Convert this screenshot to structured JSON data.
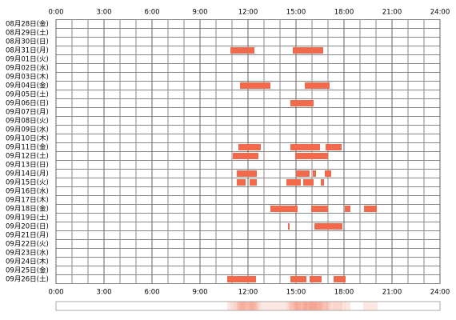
{
  "chart_data": {
    "type": "timeline",
    "categories": [
      "08月28日(金)",
      "08月29日(土)",
      "08月30日(日)",
      "08月31日(月)",
      "09月01日(火)",
      "09月02日(水)",
      "09月03日(木)",
      "09月04日(金)",
      "09月05日(土)",
      "09月06日(日)",
      "09月07日(月)",
      "09月08日(火)",
      "09月09日(水)",
      "09月10日(木)",
      "09月11日(金)",
      "09月12日(土)",
      "09月13日(日)",
      "09月14日(月)",
      "09月15日(火)",
      "09月16日(水)",
      "09月17日(木)",
      "09月18日(金)",
      "09月19日(土)",
      "09月20日(日)",
      "09月21日(月)",
      "09月22日(火)",
      "09月23日(水)",
      "09月24日(木)",
      "09月25日(金)",
      "09月26日(土)"
    ],
    "intervals": [
      [],
      [],
      [],
      [
        [
          10.9,
          12.4
        ],
        [
          14.8,
          16.7
        ]
      ],
      [],
      [],
      [],
      [
        [
          11.5,
          13.4
        ],
        [
          15.55,
          17.1
        ]
      ],
      [],
      [
        [
          14.65,
          16.1
        ]
      ],
      [],
      [],
      [],
      [],
      [
        [
          11.4,
          12.8
        ],
        [
          14.65,
          16.5
        ],
        [
          16.85,
          17.85
        ]
      ],
      [
        [
          11.05,
          12.65
        ],
        [
          14.95,
          17.0
        ]
      ],
      [],
      [
        [
          11.3,
          12.55
        ],
        [
          15.0,
          15.85
        ],
        [
          16.05,
          16.25
        ],
        [
          16.8,
          17.2
        ]
      ],
      [
        [
          11.3,
          11.85
        ],
        [
          12.1,
          12.55
        ],
        [
          14.4,
          15.3
        ],
        [
          15.45,
          16.1
        ],
        [
          16.55,
          16.75
        ]
      ],
      [],
      [],
      [
        [
          13.4,
          15.1
        ],
        [
          15.95,
          17.0
        ],
        [
          18.05,
          18.4
        ],
        [
          19.25,
          20.05
        ]
      ],
      [],
      [
        [
          14.5,
          14.6
        ],
        [
          16.15,
          17.9
        ]
      ],
      [],
      [],
      [],
      [],
      [],
      [
        [
          10.7,
          12.5
        ],
        [
          14.65,
          15.65
        ],
        [
          15.85,
          16.6
        ],
        [
          17.35,
          18.1
        ]
      ]
    ],
    "color": "#f26a4b",
    "xlim": [
      0,
      24
    ],
    "xticks": [
      {
        "value": 0,
        "label": "0:00"
      },
      {
        "value": 3,
        "label": "3:00"
      },
      {
        "value": 6,
        "label": "6:00"
      },
      {
        "value": 9,
        "label": "9:00"
      },
      {
        "value": 12,
        "label": "12:00"
      },
      {
        "value": 15,
        "label": "15:00"
      },
      {
        "value": 18,
        "label": "18:00"
      },
      {
        "value": 21,
        "label": "21:00"
      },
      {
        "value": 24,
        "label": "24:00"
      }
    ],
    "grid_step": 1,
    "grid": true
  }
}
